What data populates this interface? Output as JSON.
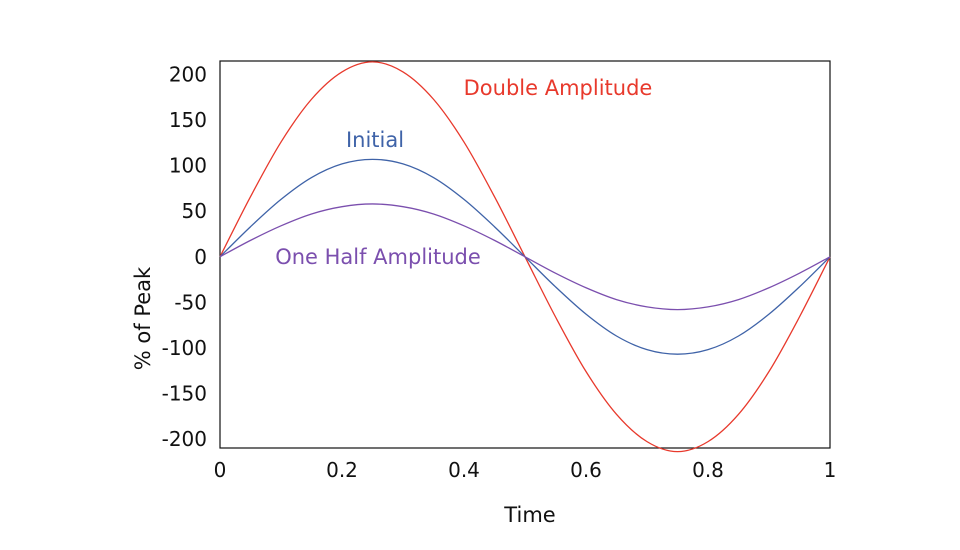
{
  "chart_data": {
    "type": "line",
    "title": "",
    "xlabel": "Time",
    "ylabel": "% of Peak",
    "xlim": [
      0,
      1
    ],
    "ylim": [
      -210,
      215
    ],
    "grid": false,
    "legend": "none",
    "x_ticks": [
      "0",
      "0.2",
      "0.4",
      "0.6",
      "0.8",
      "1"
    ],
    "x_tick_values": [
      0,
      0.2,
      0.4,
      0.6,
      0.8,
      1
    ],
    "y_ticks": [
      "200",
      "150",
      "100",
      "50",
      "0",
      "-50",
      "-100",
      "-150",
      "-200"
    ],
    "y_tick_values": [
      200,
      150,
      100,
      50,
      0,
      -50,
      -100,
      -150,
      -200
    ],
    "x": [
      0,
      0.05,
      0.1,
      0.15,
      0.2,
      0.25,
      0.3,
      0.35,
      0.4,
      0.45,
      0.5,
      0.55,
      0.6,
      0.65,
      0.7,
      0.75,
      0.8,
      0.85,
      0.9,
      0.95,
      1
    ],
    "series": [
      {
        "name": "Double Amplitude",
        "color": "#e8392c",
        "values": [
          0,
          66,
          126,
          173,
          203,
          214,
          203,
          173,
          126,
          66,
          0,
          -66,
          -126,
          -173,
          -203,
          -214,
          -203,
          -173,
          -126,
          -66,
          0
        ]
      },
      {
        "name": "Initial",
        "color": "#3f63a8",
        "values": [
          0,
          33,
          63,
          87,
          102,
          107,
          102,
          87,
          63,
          33,
          0,
          -33,
          -63,
          -87,
          -102,
          -107,
          -102,
          -87,
          -63,
          -33,
          0
        ]
      },
      {
        "name": "One Half Amplitude",
        "color": "#7b4fae",
        "values": [
          0,
          18,
          34,
          47,
          55,
          58,
          55,
          47,
          34,
          18,
          0,
          -18,
          -34,
          -47,
          -55,
          -58,
          -55,
          -47,
          -34,
          -18,
          0
        ]
      }
    ]
  }
}
